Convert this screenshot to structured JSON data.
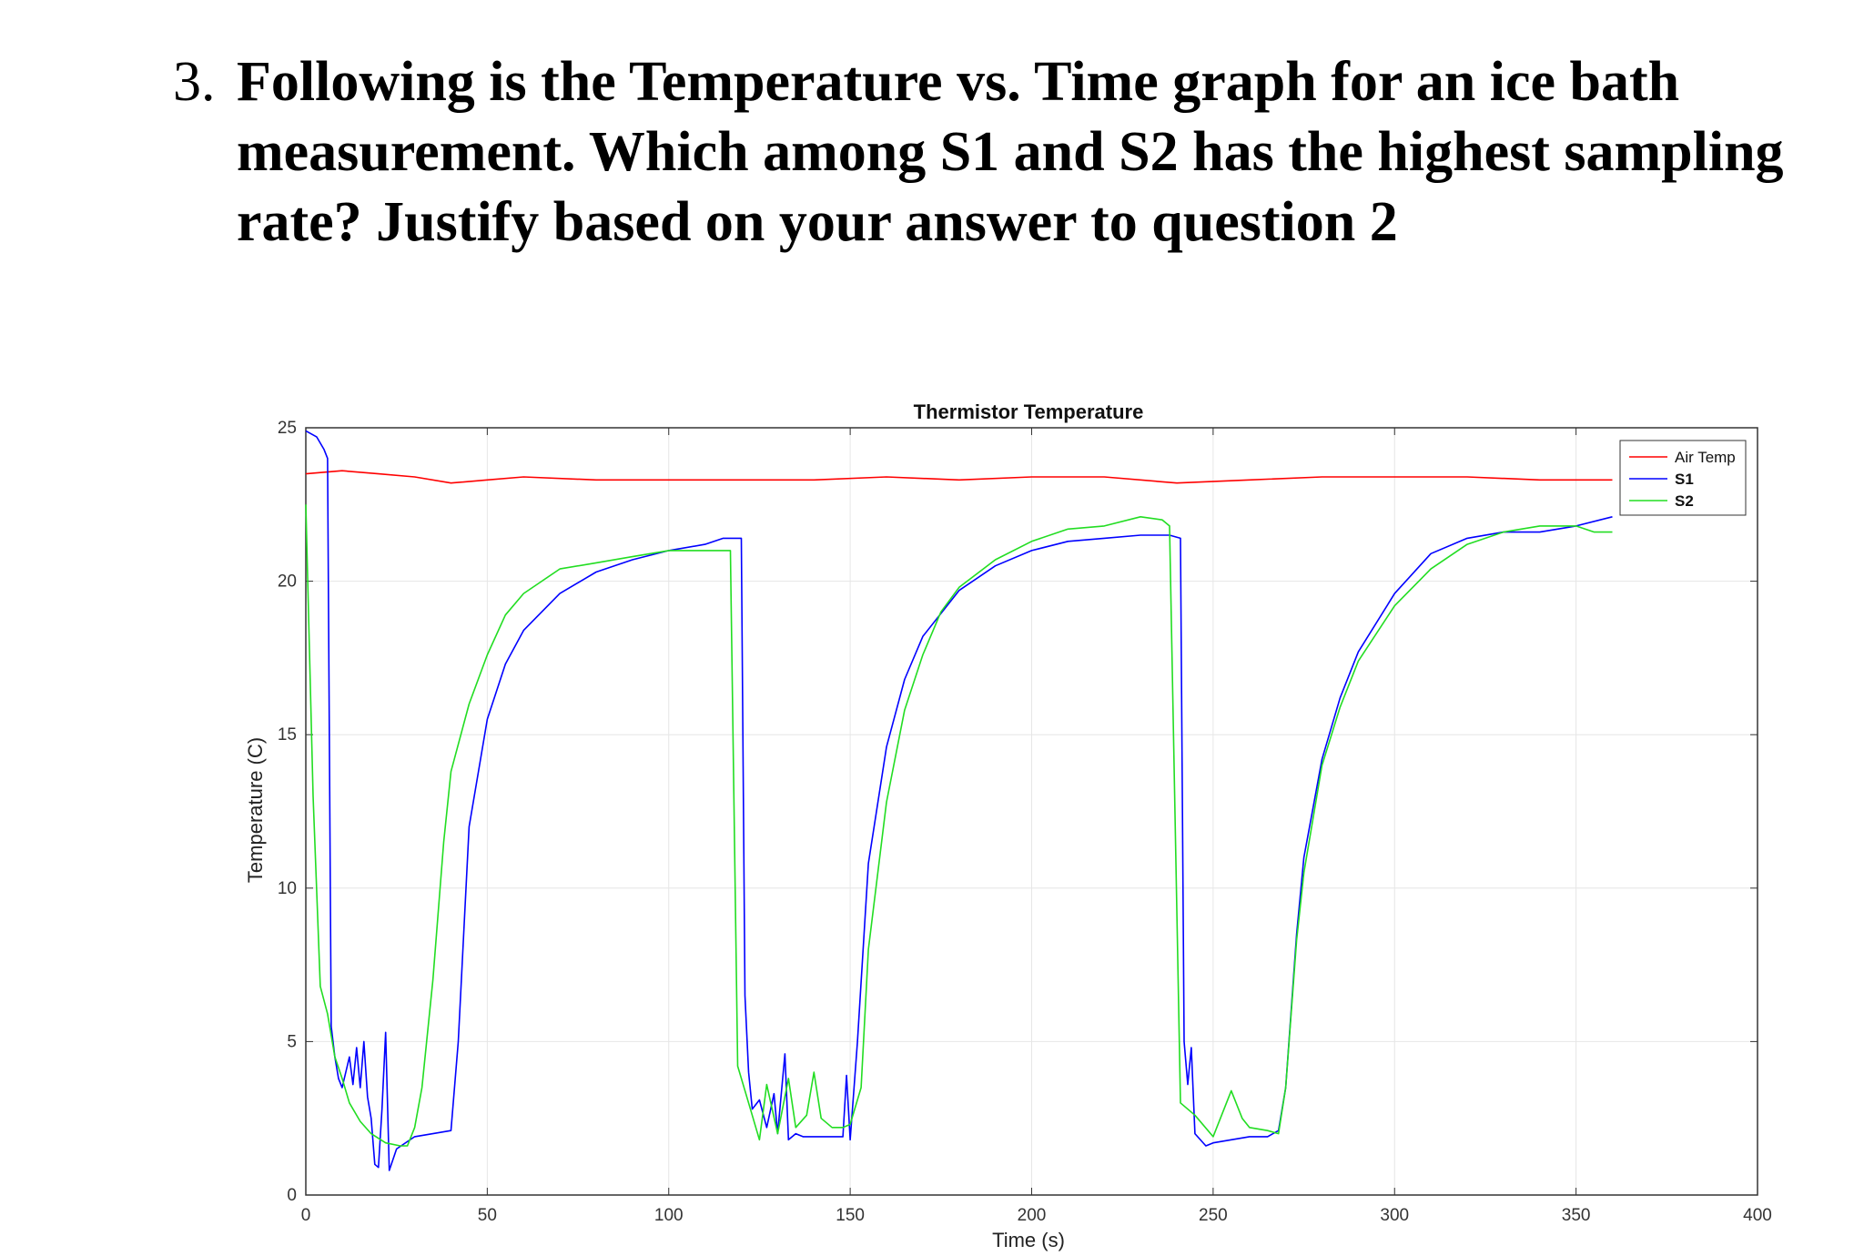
{
  "question": {
    "number": "3.",
    "text": "Following is the Temperature vs. Time graph for an ice bath measurement. Which among S1 and S2 has the highest sampling rate? Justify based on your answer to question 2"
  },
  "chart_data": {
    "type": "line",
    "title": "Thermistor Temperature",
    "xlabel": "Time (s)",
    "ylabel": "Temperature (C)",
    "xlim": [
      0,
      400
    ],
    "ylim": [
      0,
      25
    ],
    "xticks": [
      0,
      50,
      100,
      150,
      200,
      250,
      300,
      350,
      400
    ],
    "yticks": [
      0,
      5,
      10,
      15,
      20,
      25
    ],
    "grid": true,
    "legend_position": "top-right",
    "series": [
      {
        "name": "Air Temp",
        "color": "#ff0000",
        "points": [
          [
            0,
            23.5
          ],
          [
            10,
            23.6
          ],
          [
            20,
            23.5
          ],
          [
            30,
            23.4
          ],
          [
            40,
            23.2
          ],
          [
            50,
            23.3
          ],
          [
            60,
            23.4
          ],
          [
            80,
            23.3
          ],
          [
            100,
            23.3
          ],
          [
            120,
            23.3
          ],
          [
            140,
            23.3
          ],
          [
            160,
            23.4
          ],
          [
            180,
            23.3
          ],
          [
            200,
            23.4
          ],
          [
            220,
            23.4
          ],
          [
            240,
            23.2
          ],
          [
            260,
            23.3
          ],
          [
            280,
            23.4
          ],
          [
            300,
            23.4
          ],
          [
            320,
            23.4
          ],
          [
            340,
            23.3
          ],
          [
            360,
            23.3
          ]
        ]
      },
      {
        "name": "S1",
        "color": "#0000ff",
        "points": [
          [
            0,
            24.9
          ],
          [
            3,
            24.7
          ],
          [
            5,
            24.3
          ],
          [
            6,
            24.0
          ],
          [
            7,
            5.5
          ],
          [
            8,
            4.5
          ],
          [
            9,
            3.8
          ],
          [
            10,
            3.5
          ],
          [
            12,
            4.5
          ],
          [
            13,
            3.6
          ],
          [
            14,
            4.8
          ],
          [
            15,
            3.5
          ],
          [
            16,
            5.0
          ],
          [
            17,
            3.2
          ],
          [
            18,
            2.5
          ],
          [
            19,
            1.0
          ],
          [
            20,
            0.9
          ],
          [
            21,
            2.8
          ],
          [
            22,
            5.3
          ],
          [
            23,
            0.8
          ],
          [
            25,
            1.5
          ],
          [
            30,
            1.9
          ],
          [
            35,
            2.0
          ],
          [
            40,
            2.1
          ],
          [
            42,
            5.0
          ],
          [
            45,
            12.0
          ],
          [
            50,
            15.5
          ],
          [
            55,
            17.3
          ],
          [
            60,
            18.4
          ],
          [
            70,
            19.6
          ],
          [
            80,
            20.3
          ],
          [
            90,
            20.7
          ],
          [
            100,
            21.0
          ],
          [
            110,
            21.2
          ],
          [
            115,
            21.4
          ],
          [
            120,
            21.4
          ],
          [
            121,
            6.5
          ],
          [
            122,
            4.0
          ],
          [
            123,
            2.8
          ],
          [
            125,
            3.1
          ],
          [
            127,
            2.2
          ],
          [
            129,
            3.3
          ],
          [
            130,
            2.0
          ],
          [
            132,
            4.6
          ],
          [
            133,
            1.8
          ],
          [
            135,
            2.0
          ],
          [
            137,
            1.9
          ],
          [
            140,
            1.9
          ],
          [
            148,
            1.9
          ],
          [
            149,
            3.9
          ],
          [
            150,
            1.8
          ],
          [
            152,
            5.0
          ],
          [
            155,
            10.8
          ],
          [
            160,
            14.6
          ],
          [
            165,
            16.8
          ],
          [
            170,
            18.2
          ],
          [
            180,
            19.7
          ],
          [
            190,
            20.5
          ],
          [
            200,
            21.0
          ],
          [
            210,
            21.3
          ],
          [
            220,
            21.4
          ],
          [
            230,
            21.5
          ],
          [
            238,
            21.5
          ],
          [
            241,
            21.4
          ],
          [
            242,
            5.0
          ],
          [
            243,
            3.6
          ],
          [
            244,
            4.8
          ],
          [
            245,
            2.0
          ],
          [
            248,
            1.6
          ],
          [
            250,
            1.7
          ],
          [
            255,
            1.8
          ],
          [
            260,
            1.9
          ],
          [
            265,
            1.9
          ],
          [
            268,
            2.1
          ],
          [
            270,
            3.5
          ],
          [
            273,
            8.5
          ],
          [
            275,
            11.0
          ],
          [
            280,
            14.2
          ],
          [
            285,
            16.2
          ],
          [
            290,
            17.7
          ],
          [
            300,
            19.6
          ],
          [
            310,
            20.9
          ],
          [
            320,
            21.4
          ],
          [
            330,
            21.6
          ],
          [
            340,
            21.6
          ],
          [
            350,
            21.8
          ],
          [
            360,
            22.1
          ]
        ]
      },
      {
        "name": "S2",
        "color": "#22dd22",
        "points": [
          [
            0,
            22.5
          ],
          [
            2,
            13.0
          ],
          [
            4,
            6.8
          ],
          [
            6,
            5.9
          ],
          [
            8,
            4.5
          ],
          [
            10,
            3.8
          ],
          [
            12,
            3.0
          ],
          [
            15,
            2.4
          ],
          [
            18,
            2.0
          ],
          [
            22,
            1.7
          ],
          [
            26,
            1.6
          ],
          [
            28,
            1.6
          ],
          [
            30,
            2.2
          ],
          [
            32,
            3.5
          ],
          [
            35,
            7.0
          ],
          [
            38,
            11.5
          ],
          [
            40,
            13.8
          ],
          [
            45,
            16.0
          ],
          [
            50,
            17.6
          ],
          [
            55,
            18.9
          ],
          [
            60,
            19.6
          ],
          [
            65,
            20.0
          ],
          [
            70,
            20.4
          ],
          [
            80,
            20.6
          ],
          [
            90,
            20.8
          ],
          [
            100,
            21.0
          ],
          [
            110,
            21.0
          ],
          [
            117,
            21.0
          ],
          [
            119,
            4.2
          ],
          [
            122,
            3.0
          ],
          [
            125,
            1.8
          ],
          [
            127,
            3.6
          ],
          [
            130,
            2.0
          ],
          [
            133,
            3.8
          ],
          [
            135,
            2.2
          ],
          [
            138,
            2.6
          ],
          [
            140,
            4.0
          ],
          [
            142,
            2.5
          ],
          [
            145,
            2.2
          ],
          [
            148,
            2.2
          ],
          [
            150,
            2.3
          ],
          [
            153,
            3.5
          ],
          [
            155,
            8.0
          ],
          [
            160,
            12.8
          ],
          [
            165,
            15.8
          ],
          [
            170,
            17.6
          ],
          [
            175,
            19.0
          ],
          [
            180,
            19.8
          ],
          [
            190,
            20.7
          ],
          [
            200,
            21.3
          ],
          [
            210,
            21.7
          ],
          [
            220,
            21.8
          ],
          [
            230,
            22.1
          ],
          [
            236,
            22.0
          ],
          [
            238,
            21.8
          ],
          [
            241,
            3.0
          ],
          [
            245,
            2.6
          ],
          [
            250,
            1.9
          ],
          [
            255,
            3.4
          ],
          [
            258,
            2.5
          ],
          [
            260,
            2.2
          ],
          [
            265,
            2.1
          ],
          [
            268,
            2.0
          ],
          [
            270,
            3.5
          ],
          [
            273,
            8.3
          ],
          [
            275,
            10.5
          ],
          [
            280,
            14.0
          ],
          [
            285,
            15.9
          ],
          [
            290,
            17.4
          ],
          [
            300,
            19.2
          ],
          [
            310,
            20.4
          ],
          [
            320,
            21.2
          ],
          [
            330,
            21.6
          ],
          [
            340,
            21.8
          ],
          [
            350,
            21.8
          ],
          [
            355,
            21.6
          ],
          [
            360,
            21.6
          ]
        ]
      }
    ]
  }
}
